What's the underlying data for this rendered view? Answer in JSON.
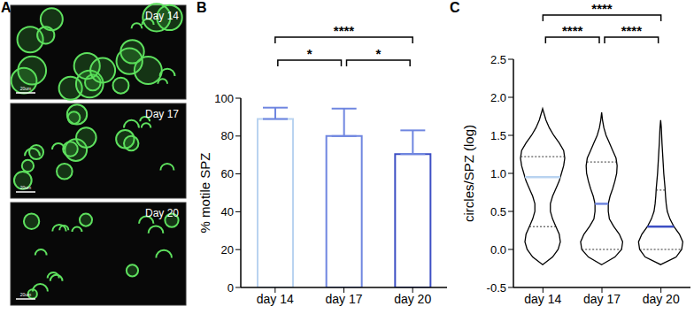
{
  "chart_data": [
    {
      "type": "image",
      "title": "A",
      "panels": [
        "Day 14",
        "Day 17",
        "Day 20"
      ],
      "scale_bar": "20um"
    },
    {
      "type": "bar",
      "title": "B",
      "categories": [
        "day 14",
        "day 17",
        "day 20"
      ],
      "values": [
        89,
        80,
        70.5
      ],
      "errors": [
        6,
        14.5,
        12.5
      ],
      "colors": [
        "#b9d3f0",
        "#6f86e0",
        "#3d4fc4"
      ],
      "y_label": "% motile SPZ",
      "ylim": [
        0,
        100
      ],
      "yticks": [
        0,
        20,
        40,
        60,
        80,
        100
      ],
      "significance": [
        {
          "from": "day 14",
          "to": "day 17",
          "label": "*"
        },
        {
          "from": "day 17",
          "to": "day 20",
          "label": "*"
        },
        {
          "from": "day 14",
          "to": "day 20",
          "label": "****"
        }
      ]
    },
    {
      "type": "violin",
      "title": "C",
      "categories": [
        "day 14",
        "day 17",
        "day 20"
      ],
      "y_label": "circles/SPZ (log)",
      "ylim": [
        -0.5,
        2.5
      ],
      "yticks": [
        -0.5,
        {
          "value": 0,
          "label": "0.0"
        },
        0.5,
        {
          "value": 1,
          "label": "1.0"
        },
        1.5,
        {
          "value": 2,
          "label": "2.0"
        },
        2.5
      ],
      "violins": [
        {
          "y": [
            -0.2,
            -0.1,
            0,
            0.1,
            0.2,
            0.3,
            0.4,
            0.5,
            0.6,
            0.7,
            0.8,
            0.9,
            1.0,
            1.1,
            1.2,
            1.3,
            1.4,
            1.5,
            1.6,
            1.7,
            1.8,
            1.85
          ],
          "density": [
            0,
            0.45,
            0.7,
            0.8,
            0.75,
            0.6,
            0.45,
            0.35,
            0.35,
            0.45,
            0.6,
            0.75,
            0.85,
            0.95,
            1.0,
            0.95,
            0.75,
            0.5,
            0.3,
            0.15,
            0.05,
            0
          ]
        },
        {
          "y": [
            -0.2,
            -0.1,
            0,
            0.1,
            0.2,
            0.3,
            0.4,
            0.5,
            0.6,
            0.7,
            0.8,
            0.9,
            1.0,
            1.1,
            1.2,
            1.3,
            1.4,
            1.5,
            1.6,
            1.7,
            1.8
          ],
          "density": [
            0,
            0.6,
            0.9,
            0.95,
            0.8,
            0.55,
            0.35,
            0.3,
            0.3,
            0.38,
            0.5,
            0.6,
            0.68,
            0.7,
            0.65,
            0.5,
            0.35,
            0.2,
            0.1,
            0.04,
            0
          ]
        },
        {
          "y": [
            -0.2,
            -0.1,
            0,
            0.1,
            0.2,
            0.3,
            0.4,
            0.5,
            0.6,
            0.7,
            0.8,
            0.9,
            1.0,
            1.2,
            1.4,
            1.6,
            1.7
          ],
          "density": [
            0,
            0.7,
            0.95,
            1.0,
            0.85,
            0.6,
            0.42,
            0.3,
            0.25,
            0.22,
            0.2,
            0.17,
            0.14,
            0.1,
            0.06,
            0.03,
            0
          ]
        }
      ],
      "medians": [
        0.95,
        0.6,
        0.3
      ],
      "quartiles": [
        [
          0.3,
          1.22
        ],
        [
          0,
          1.15
        ],
        [
          0,
          0.78
        ]
      ],
      "colors": [
        "#b9d3f0",
        "#6f86e0",
        "#3d4fc4"
      ],
      "significance": [
        {
          "from": "day 14",
          "to": "day 17",
          "label": "****"
        },
        {
          "from": "day 17",
          "to": "day 20",
          "label": "****"
        },
        {
          "from": "day 14",
          "to": "day 20",
          "label": "****"
        }
      ]
    }
  ]
}
